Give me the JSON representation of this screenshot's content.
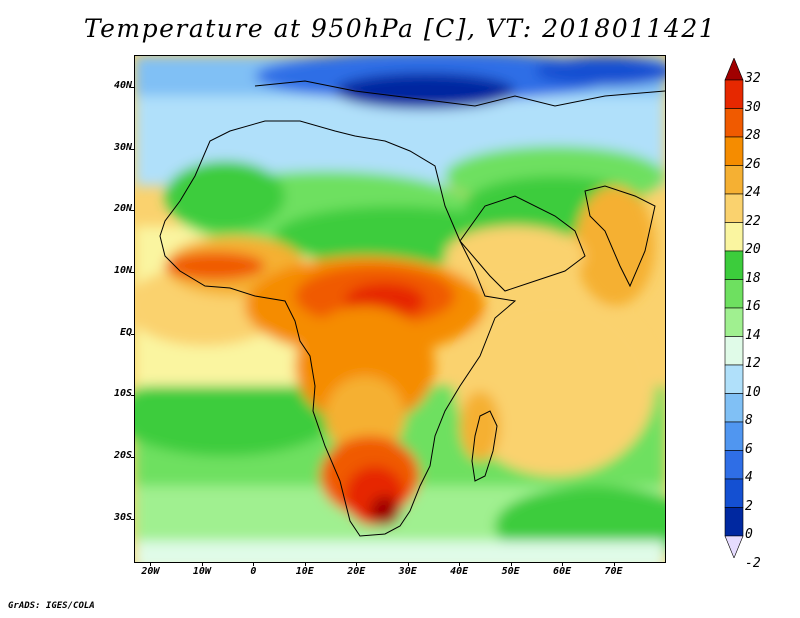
{
  "title": "Temperature at 950hPa [C], VT: 2018011421",
  "credit": "GrADS: IGES/COLA",
  "map": {
    "lon_range": [
      -23,
      80
    ],
    "lat_range": [
      -37,
      45
    ],
    "x_ticks": [
      {
        "lon": -20,
        "label": "20W"
      },
      {
        "lon": -10,
        "label": "10W"
      },
      {
        "lon": 0,
        "label": "0"
      },
      {
        "lon": 10,
        "label": "10E"
      },
      {
        "lon": 20,
        "label": "20E"
      },
      {
        "lon": 30,
        "label": "30E"
      },
      {
        "lon": 40,
        "label": "40E"
      },
      {
        "lon": 50,
        "label": "50E"
      },
      {
        "lon": 60,
        "label": "60E"
      },
      {
        "lon": 70,
        "label": "70E"
      }
    ],
    "y_ticks": [
      {
        "lat": 40,
        "label": "40N"
      },
      {
        "lat": 30,
        "label": "30N"
      },
      {
        "lat": 20,
        "label": "20N"
      },
      {
        "lat": 10,
        "label": "10N"
      },
      {
        "lat": 0,
        "label": "EQ"
      },
      {
        "lat": -10,
        "label": "10S"
      },
      {
        "lat": -20,
        "label": "20S"
      },
      {
        "lat": -30,
        "label": "30S"
      }
    ]
  },
  "colorbar": {
    "levels": [
      "32",
      "30",
      "28",
      "26",
      "24",
      "22",
      "20",
      "18",
      "16",
      "14",
      "12",
      "10",
      "8",
      "6",
      "4",
      "2",
      "0",
      "-2"
    ],
    "colors": [
      "#a00000",
      "#e62800",
      "#f05a00",
      "#f58c00",
      "#f5b033",
      "#fad26e",
      "#faf5a0",
      "#3ccc3c",
      "#6ee060",
      "#a0f090",
      "#e0fbe8",
      "#b0e0fa",
      "#80c0f5",
      "#5096f0",
      "#2f6ee6",
      "#1450d2",
      "#0028a0",
      "#e6dcff"
    ]
  }
}
